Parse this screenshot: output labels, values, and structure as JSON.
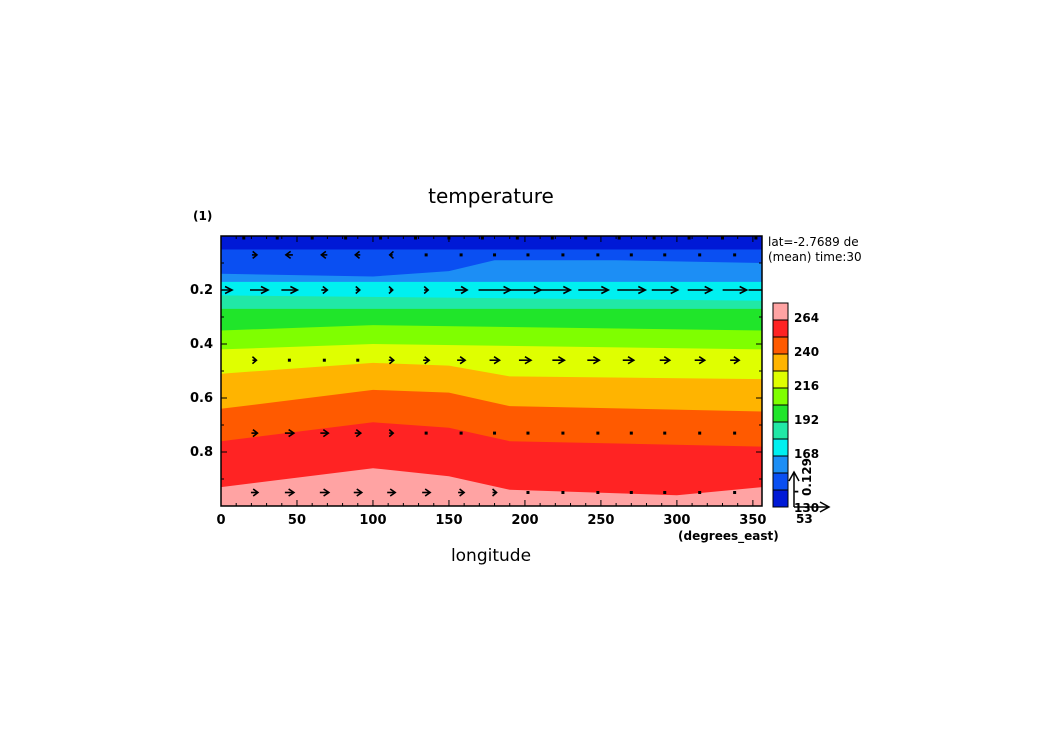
{
  "chart_data": {
    "type": "heatmap",
    "title": "temperature",
    "xlabel": "longitude",
    "xunits": "(degrees_east)",
    "ylabel": "(1)",
    "annotations": [
      "lat=-2.7689 de",
      "(mean) time:30"
    ],
    "x_ticks": [
      0,
      50,
      100,
      150,
      200,
      250,
      300,
      350
    ],
    "y_ticks": [
      0.2,
      0.4,
      0.6,
      0.8
    ],
    "xlim": [
      0,
      356
    ],
    "ylim": [
      0.0,
      1.0
    ],
    "y_inverted": true,
    "colorbar": {
      "levels": [
        130,
        142,
        154,
        166,
        178,
        190,
        202,
        214,
        226,
        238,
        250,
        262,
        274
      ],
      "tick_labels": [
        "130",
        "-",
        "168",
        "192",
        "216",
        "240",
        "264"
      ],
      "colors": [
        "#0019d6",
        "#0a4ff2",
        "#1c8ef5",
        "#00f0f0",
        "#21e8a6",
        "#20e52a",
        "#7fff00",
        "#dfff00",
        "#ffb400",
        "#ff5a00",
        "#ff2323",
        "#ffa3a3"
      ]
    },
    "vector_reference": {
      "u_label": "53",
      "v_label": "0.129"
    },
    "contour_bands": [
      {
        "fill": "#0019d6",
        "boundary_sigma": [
          [
            0,
            0.0
          ],
          [
            356,
            0.0
          ]
        ]
      },
      {
        "fill": "#0a4ff2",
        "boundary_sigma": [
          [
            0,
            0.05
          ],
          [
            356,
            0.05
          ]
        ]
      },
      {
        "fill": "#1c8ef5",
        "boundary_sigma": [
          [
            0,
            0.14
          ],
          [
            100,
            0.15
          ],
          [
            150,
            0.13
          ],
          [
            180,
            0.09
          ],
          [
            260,
            0.09
          ],
          [
            356,
            0.1
          ]
        ]
      },
      {
        "fill": "#00f0f0",
        "boundary_sigma": [
          [
            0,
            0.17
          ],
          [
            356,
            0.17
          ]
        ]
      },
      {
        "fill": "#21e8a6",
        "boundary_sigma": [
          [
            0,
            0.22
          ],
          [
            356,
            0.24
          ]
        ]
      },
      {
        "fill": "#20e52a",
        "boundary_sigma": [
          [
            0,
            0.27
          ],
          [
            356,
            0.27
          ]
        ]
      },
      {
        "fill": "#7fff00",
        "boundary_sigma": [
          [
            0,
            0.35
          ],
          [
            100,
            0.33
          ],
          [
            356,
            0.35
          ]
        ]
      },
      {
        "fill": "#dfff00",
        "boundary_sigma": [
          [
            0,
            0.42
          ],
          [
            100,
            0.4
          ],
          [
            356,
            0.42
          ]
        ]
      },
      {
        "fill": "#ffb400",
        "boundary_sigma": [
          [
            0,
            0.51
          ],
          [
            100,
            0.47
          ],
          [
            150,
            0.48
          ],
          [
            190,
            0.52
          ],
          [
            356,
            0.53
          ]
        ]
      },
      {
        "fill": "#ff5a00",
        "boundary_sigma": [
          [
            0,
            0.64
          ],
          [
            100,
            0.57
          ],
          [
            150,
            0.58
          ],
          [
            190,
            0.63
          ],
          [
            356,
            0.65
          ]
        ]
      },
      {
        "fill": "#ff2323",
        "boundary_sigma": [
          [
            0,
            0.76
          ],
          [
            100,
            0.69
          ],
          [
            150,
            0.71
          ],
          [
            190,
            0.76
          ],
          [
            356,
            0.78
          ]
        ]
      },
      {
        "fill": "#ffa3a3",
        "boundary_sigma": [
          [
            0,
            0.93
          ],
          [
            100,
            0.86
          ],
          [
            150,
            0.89
          ],
          [
            190,
            0.94
          ],
          [
            300,
            0.96
          ],
          [
            356,
            0.93
          ]
        ]
      }
    ],
    "wind_vectors": [
      {
        "sigma": 0.0,
        "arrows": [
          [
            15,
            0.05
          ],
          [
            37,
            0.05
          ],
          [
            60,
            0.05
          ],
          [
            82,
            0.05
          ],
          [
            105,
            0.05
          ],
          [
            128,
            0.05
          ],
          [
            150,
            0.05
          ],
          [
            172,
            0.05
          ],
          [
            195,
            0.05
          ],
          [
            218,
            0.05
          ],
          [
            240,
            0.05
          ],
          [
            262,
            0.05
          ],
          [
            285,
            0.05
          ],
          [
            308,
            0.05
          ],
          [
            330,
            0.05
          ],
          [
            352,
            0.05
          ]
        ]
      },
      {
        "sigma": 0.07,
        "arrows": [
          [
            22,
            0.25
          ],
          [
            45,
            -0.35
          ],
          [
            68,
            -0.3
          ],
          [
            90,
            -0.25
          ],
          [
            112,
            -0.15
          ],
          [
            135,
            0.05
          ],
          [
            158,
            0.05
          ],
          [
            180,
            0.05
          ],
          [
            202,
            0.05
          ],
          [
            225,
            0.05
          ],
          [
            248,
            0.05
          ],
          [
            270,
            0.05
          ],
          [
            292,
            0.05
          ],
          [
            315,
            0.05
          ],
          [
            338,
            0.05
          ]
        ]
      },
      {
        "sigma": 0.2,
        "arrows": [
          [
            2,
            0.8
          ],
          [
            25,
            0.9
          ],
          [
            45,
            0.8
          ],
          [
            68,
            0.3
          ],
          [
            90,
            0.2
          ],
          [
            112,
            0.15
          ],
          [
            135,
            0.2
          ],
          [
            158,
            0.6
          ],
          [
            180,
            1.6
          ],
          [
            200,
            1.6
          ],
          [
            220,
            1.5
          ],
          [
            245,
            1.5
          ],
          [
            270,
            1.4
          ],
          [
            292,
            1.3
          ],
          [
            315,
            1.2
          ],
          [
            338,
            1.2
          ],
          [
            355,
            1.2
          ]
        ]
      },
      {
        "sigma": 0.46,
        "arrows": [
          [
            22,
            0.2
          ],
          [
            45,
            0.1
          ],
          [
            68,
            0.1
          ],
          [
            90,
            0.1
          ],
          [
            112,
            0.25
          ],
          [
            135,
            0.3
          ],
          [
            158,
            0.4
          ],
          [
            180,
            0.5
          ],
          [
            200,
            0.6
          ],
          [
            222,
            0.6
          ],
          [
            245,
            0.6
          ],
          [
            268,
            0.55
          ],
          [
            292,
            0.5
          ],
          [
            315,
            0.5
          ],
          [
            338,
            0.45
          ]
        ]
      },
      {
        "sigma": 0.73,
        "arrows": [
          [
            22,
            0.3
          ],
          [
            45,
            0.45
          ],
          [
            68,
            0.4
          ],
          [
            90,
            0.3
          ],
          [
            112,
            0.2
          ],
          [
            135,
            0.1
          ],
          [
            158,
            0.05
          ],
          [
            180,
            0.05
          ],
          [
            202,
            0.05
          ],
          [
            225,
            0.05
          ],
          [
            248,
            0.05
          ],
          [
            270,
            0.05
          ],
          [
            292,
            0.05
          ],
          [
            315,
            0.05
          ],
          [
            338,
            0.05
          ]
        ]
      },
      {
        "sigma": 0.95,
        "arrows": [
          [
            22,
            0.35
          ],
          [
            45,
            0.45
          ],
          [
            68,
            0.45
          ],
          [
            90,
            0.4
          ],
          [
            112,
            0.4
          ],
          [
            135,
            0.4
          ],
          [
            158,
            0.3
          ],
          [
            180,
            0.2
          ],
          [
            202,
            0.1
          ],
          [
            225,
            0.05
          ],
          [
            248,
            0.05
          ],
          [
            270,
            0.05
          ],
          [
            292,
            0.05
          ],
          [
            315,
            0.05
          ],
          [
            338,
            0.05
          ]
        ]
      }
    ]
  }
}
